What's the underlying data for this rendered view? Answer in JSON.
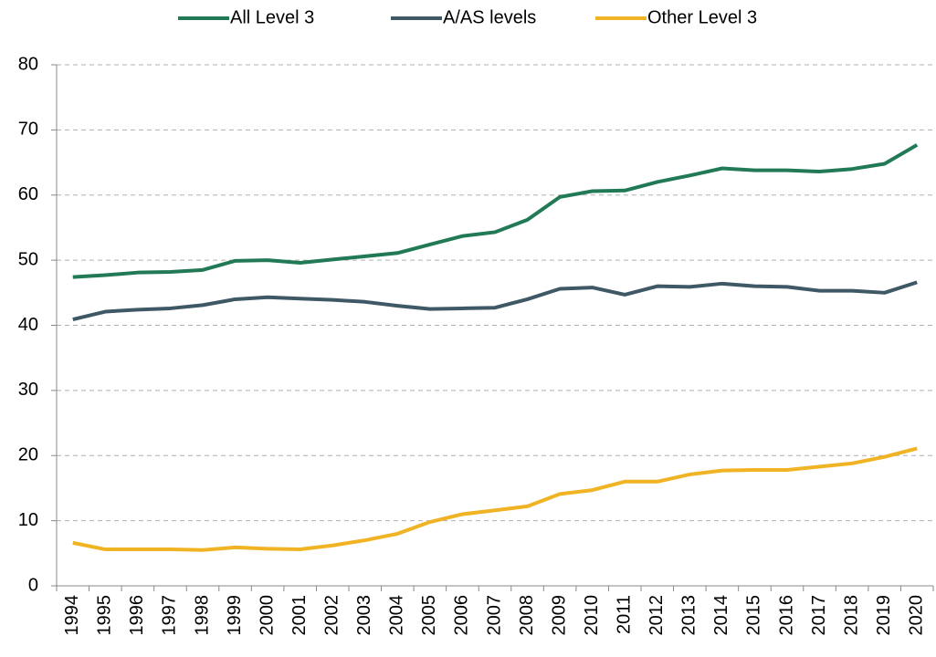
{
  "chart_data": {
    "type": "line",
    "categories": [
      "1994",
      "1995",
      "1996",
      "1997",
      "1998",
      "1999",
      "2000",
      "2001",
      "2002",
      "2003",
      "2004",
      "2005",
      "2006",
      "2007",
      "2008",
      "2009",
      "2010",
      "2011",
      "2012",
      "2013",
      "2014",
      "2015",
      "2016",
      "2017",
      "2018",
      "2019",
      "2020"
    ],
    "series": [
      {
        "name": "All Level 3",
        "color": "#217a55",
        "values": [
          47.4,
          47.7,
          48.1,
          48.2,
          48.5,
          49.9,
          50.0,
          49.6,
          50.1,
          50.6,
          51.1,
          52.4,
          53.7,
          54.3,
          56.2,
          59.7,
          60.6,
          60.7,
          62.0,
          63.0,
          64.1,
          63.8,
          63.8,
          63.6,
          64.0,
          64.8,
          67.7
        ]
      },
      {
        "name": "A/AS levels",
        "color": "#3f5866",
        "values": [
          40.9,
          42.1,
          42.4,
          42.6,
          43.1,
          44.0,
          44.3,
          44.1,
          43.9,
          43.6,
          43.0,
          42.5,
          42.6,
          42.7,
          44.0,
          45.6,
          45.8,
          44.7,
          46.0,
          45.9,
          46.4,
          46.0,
          45.9,
          45.3,
          45.3,
          45.0,
          46.6
        ]
      },
      {
        "name": "Other Level 3",
        "color": "#f0b323",
        "values": [
          6.6,
          5.6,
          5.6,
          5.6,
          5.5,
          5.9,
          5.7,
          5.6,
          6.2,
          7.0,
          8.0,
          9.8,
          11.0,
          11.6,
          12.2,
          14.1,
          14.7,
          16.0,
          16.0,
          17.1,
          17.7,
          17.8,
          17.8,
          18.3,
          18.8,
          19.8,
          21.1
        ]
      }
    ],
    "ylim": [
      0,
      80
    ],
    "yticks": [
      0,
      10,
      20,
      30,
      40,
      50,
      60,
      70,
      80
    ],
    "grid": true,
    "legend": "top"
  }
}
